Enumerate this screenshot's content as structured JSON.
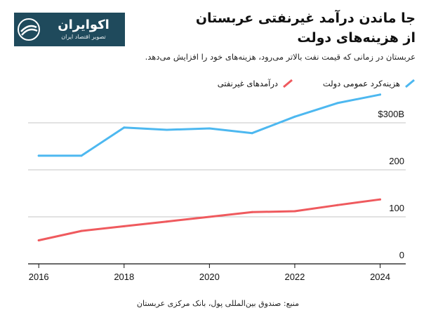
{
  "header": {
    "title_line1": "جا ماندن درآمد غیرنفتی عربستان",
    "title_line2": "از هزینه‌های دولت",
    "subtitle": "عربستان در زمانی که قیمت نفت بالاتر می‌رود، هزینه‌های خود را افزایش می‌دهد."
  },
  "logo": {
    "name": "اکوایران",
    "tagline": "تصویر اقتصاد ایران",
    "icon": "ecoiran-logo-mark",
    "color": "#1f4a5c"
  },
  "legend": {
    "spending": "هزینه‌کرد عمومی دولت",
    "revenue": "درآمدهای غیرنفتی"
  },
  "footer": {
    "source": "منبع: صندوق بین‌المللی پول، بانک مرکزی عربستان"
  },
  "chart_data": {
    "type": "line",
    "x": [
      2016,
      2017,
      2018,
      2019,
      2020,
      2021,
      2022,
      2023,
      2024
    ],
    "series": [
      {
        "name": "هزینه‌کرد عمومی دولت",
        "color": "#4db8f0",
        "values": [
          230,
          230,
          290,
          285,
          288,
          278,
          313,
          342,
          360
        ]
      },
      {
        "name": "درآمدهای غیرنفتی",
        "color": "#ef5a5e",
        "values": [
          50,
          70,
          80,
          90,
          100,
          110,
          112,
          125,
          137
        ]
      }
    ],
    "xticks": [
      "2016",
      "2018",
      "2020",
      "2022",
      "2024"
    ],
    "yticks": [
      {
        "value": 0,
        "label": "0"
      },
      {
        "value": 100,
        "label": "100"
      },
      {
        "value": 200,
        "label": "200"
      },
      {
        "value": 300,
        "label": "$300B"
      }
    ],
    "ylim": [
      0,
      400
    ],
    "xlim": [
      2015.75,
      2024.6
    ],
    "grid": true
  }
}
